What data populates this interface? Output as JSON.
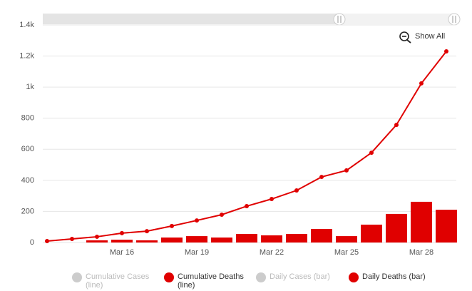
{
  "chart_data": {
    "type": "combo",
    "categories": [
      null,
      null,
      null,
      "Mar 16",
      null,
      null,
      "Mar 19",
      null,
      null,
      "Mar 22",
      null,
      null,
      "Mar 25",
      null,
      null,
      "Mar 28",
      null
    ],
    "ylim": [
      0,
      1400
    ],
    "yticks": [
      0,
      200,
      400,
      600,
      800,
      {
        "value": 1000,
        "label": "1k"
      },
      {
        "value": 1200,
        "label": "1.2k"
      },
      {
        "value": 1400,
        "label": "1.4k"
      }
    ],
    "grid": true,
    "zoom_button": "Show All",
    "series": [
      {
        "name": "Daily Deaths (bar)",
        "type": "bar",
        "color": "#e00000",
        "values": [
          null,
          null,
          14,
          18,
          14,
          32,
          41,
          32,
          55,
          46,
          55,
          87,
          41,
          115,
          184,
          262,
          211
        ]
      },
      {
        "name": "Cumulative Deaths (line)",
        "type": "line",
        "color": "#e00000",
        "values": [
          9,
          23,
          37,
          60,
          73,
          106,
          142,
          179,
          234,
          280,
          335,
          422,
          464,
          578,
          757,
          1024,
          1230
        ]
      }
    ],
    "legend": [
      {
        "name": "Cumulative Cases (line)",
        "enabled": false
      },
      {
        "name": "Cumulative Deaths (line)",
        "enabled": true
      },
      {
        "name": "Daily Cases (bar)",
        "enabled": false
      },
      {
        "name": "Daily Deaths (bar)",
        "enabled": true
      }
    ]
  }
}
